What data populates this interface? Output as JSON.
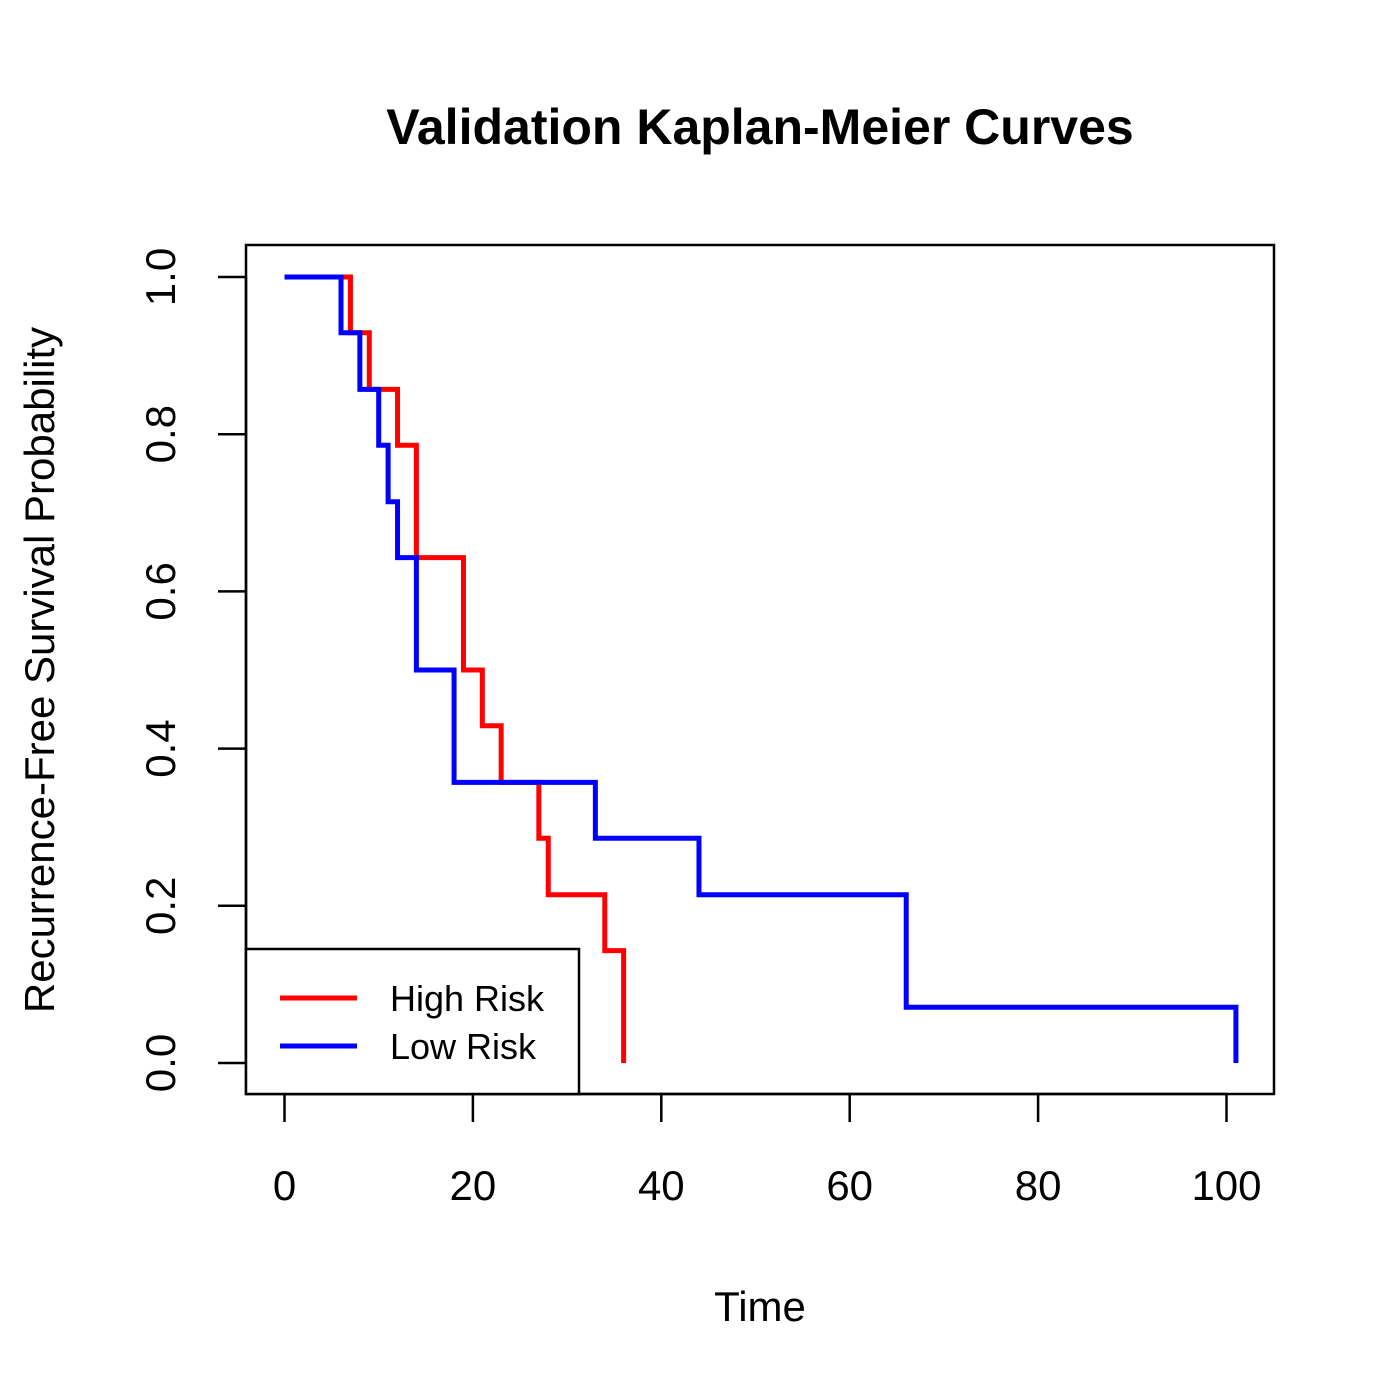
{
  "chart_data": {
    "type": "line",
    "title": "Validation Kaplan-Meier Curves",
    "xlabel": "Time",
    "ylabel": "Recurrence-Free Survival Probability",
    "xlim": [
      -4,
      105
    ],
    "ylim": [
      -0.04,
      1.04
    ],
    "x_ticks": [
      0,
      20,
      40,
      60,
      80,
      100
    ],
    "y_ticks": [
      0.0,
      0.2,
      0.4,
      0.6,
      0.8,
      1.0
    ],
    "x_tick_labels": [
      "0",
      "20",
      "40",
      "60",
      "80",
      "100"
    ],
    "y_tick_labels": [
      "0.0",
      "0.2",
      "0.4",
      "0.6",
      "0.8",
      "1.0"
    ],
    "grid": false,
    "legend_position": "bottom-left",
    "step_style": "post",
    "series": [
      {
        "name": "High Risk",
        "color": "#ff0000",
        "x": [
          0,
          7,
          9,
          12,
          14,
          19,
          21,
          23,
          27,
          28,
          34,
          36
        ],
        "y": [
          1.0,
          0.929,
          0.857,
          0.786,
          0.643,
          0.5,
          0.429,
          0.357,
          0.286,
          0.214,
          0.143,
          0.071
        ],
        "end": [
          36,
          0.0
        ]
      },
      {
        "name": "Low Risk",
        "color": "#0000ff",
        "x": [
          0,
          5,
          6,
          8,
          10,
          11,
          12,
          14,
          18,
          33,
          44,
          66
        ],
        "y": [
          1.0,
          1.0,
          0.929,
          0.857,
          0.786,
          0.714,
          0.643,
          0.5,
          0.357,
          0.286,
          0.214,
          0.143
        ],
        "end": [
          101,
          0.0
        ],
        "tail": [
          [
            66,
            0.071
          ],
          [
            101,
            0.071
          ]
        ]
      }
    ]
  }
}
